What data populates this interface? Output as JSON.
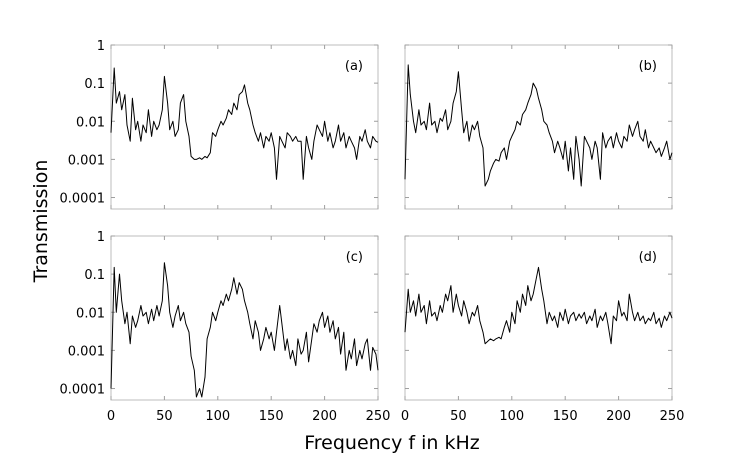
{
  "figure": {
    "ylabel": "Transmission",
    "xlabel": "Frequency f in kHz"
  },
  "chart_data": [
    {
      "type": "line",
      "panel": "(a)",
      "xlim": [
        0,
        250
      ],
      "ylim": [
        5e-05,
        1
      ],
      "yscale": "log",
      "xticks": [
        0,
        50,
        100,
        150,
        200,
        250
      ],
      "yticks": [
        0.0001,
        0.001,
        0.01,
        0.1,
        1
      ],
      "ytick_labels": [
        "0.0001",
        "0.001",
        "0.01",
        "0.1",
        "1"
      ],
      "show_xtick_labels": false,
      "show_ytick_labels": true,
      "grid": false,
      "series": [
        {
          "x": [
            0,
            3,
            5,
            8,
            10,
            13,
            15,
            18,
            20,
            23,
            25,
            28,
            30,
            33,
            35,
            38,
            40,
            43,
            45,
            48,
            50,
            53,
            55,
            58,
            60,
            63,
            65,
            68,
            70,
            73,
            75,
            78,
            80,
            83,
            85,
            88,
            90,
            93,
            95,
            98,
            100,
            103,
            105,
            108,
            110,
            113,
            115,
            118,
            120,
            123,
            125,
            128,
            130,
            133,
            135,
            138,
            140,
            143,
            145,
            148,
            150,
            153,
            155,
            158,
            160,
            163,
            165,
            168,
            170,
            173,
            175,
            178,
            180,
            183,
            185,
            188,
            190,
            193,
            195,
            198,
            200,
            203,
            205,
            208,
            210,
            213,
            215,
            218,
            220,
            223,
            225,
            228,
            230,
            233,
            235,
            238,
            240,
            243,
            245,
            248,
            250
          ],
          "y": [
            0.005,
            0.25,
            0.03,
            0.06,
            0.02,
            0.05,
            0.008,
            0.003,
            0.04,
            0.006,
            0.01,
            0.003,
            0.008,
            0.005,
            0.02,
            0.004,
            0.01,
            0.006,
            0.008,
            0.02,
            0.15,
            0.03,
            0.006,
            0.01,
            0.004,
            0.006,
            0.03,
            0.05,
            0.01,
            0.004,
            0.0012,
            0.001,
            0.001,
            0.0011,
            0.001,
            0.0012,
            0.0011,
            0.0015,
            0.005,
            0.004,
            0.006,
            0.01,
            0.008,
            0.012,
            0.02,
            0.015,
            0.03,
            0.02,
            0.05,
            0.06,
            0.09,
            0.03,
            0.02,
            0.008,
            0.005,
            0.003,
            0.005,
            0.002,
            0.004,
            0.003,
            0.005,
            0.002,
            0.0003,
            0.004,
            0.003,
            0.002,
            0.005,
            0.004,
            0.003,
            0.004,
            0.003,
            0.003,
            0.0003,
            0.004,
            0.002,
            0.001,
            0.003,
            0.008,
            0.006,
            0.004,
            0.01,
            0.003,
            0.005,
            0.002,
            0.003,
            0.008,
            0.003,
            0.005,
            0.002,
            0.004,
            0.003,
            0.002,
            0.001,
            0.004,
            0.003,
            0.006,
            0.003,
            0.002,
            0.004,
            0.003,
            0.0028
          ]
        }
      ]
    },
    {
      "type": "line",
      "panel": "(b)",
      "xlim": [
        0,
        250
      ],
      "ylim": [
        5e-05,
        1
      ],
      "yscale": "log",
      "xticks": [
        0,
        50,
        100,
        150,
        200,
        250
      ],
      "yticks": [
        0.0001,
        0.001,
        0.01,
        0.1,
        1
      ],
      "show_xtick_labels": false,
      "show_ytick_labels": false,
      "grid": false,
      "series": [
        {
          "x": [
            0,
            3,
            5,
            8,
            10,
            13,
            15,
            18,
            20,
            23,
            25,
            28,
            30,
            33,
            35,
            38,
            40,
            43,
            45,
            48,
            50,
            53,
            55,
            58,
            60,
            63,
            65,
            68,
            70,
            73,
            75,
            78,
            80,
            83,
            85,
            88,
            90,
            93,
            95,
            98,
            100,
            103,
            105,
            108,
            110,
            113,
            115,
            118,
            120,
            123,
            125,
            128,
            130,
            133,
            135,
            138,
            140,
            143,
            145,
            148,
            150,
            153,
            155,
            158,
            160,
            163,
            165,
            168,
            170,
            173,
            175,
            178,
            180,
            183,
            185,
            188,
            190,
            193,
            195,
            198,
            200,
            203,
            205,
            208,
            210,
            213,
            215,
            218,
            220,
            223,
            225,
            228,
            230,
            233,
            235,
            238,
            240,
            243,
            245,
            248,
            250
          ],
          "y": [
            0.0003,
            0.3,
            0.05,
            0.01,
            0.005,
            0.02,
            0.008,
            0.01,
            0.006,
            0.03,
            0.008,
            0.01,
            0.005,
            0.012,
            0.01,
            0.02,
            0.006,
            0.01,
            0.03,
            0.06,
            0.2,
            0.02,
            0.005,
            0.01,
            0.003,
            0.008,
            0.006,
            0.01,
            0.004,
            0.002,
            0.0002,
            0.0003,
            0.0005,
            0.0008,
            0.001,
            0.0009,
            0.0015,
            0.002,
            0.001,
            0.003,
            0.004,
            0.006,
            0.01,
            0.008,
            0.015,
            0.02,
            0.03,
            0.05,
            0.1,
            0.07,
            0.04,
            0.02,
            0.01,
            0.008,
            0.005,
            0.003,
            0.0015,
            0.003,
            0.002,
            0.001,
            0.003,
            0.0005,
            0.002,
            0.0003,
            0.004,
            0.001,
            0.0002,
            0.004,
            0.003,
            0.002,
            0.001,
            0.003,
            0.002,
            0.0003,
            0.005,
            0.002,
            0.003,
            0.004,
            0.002,
            0.005,
            0.003,
            0.002,
            0.004,
            0.003,
            0.008,
            0.004,
            0.006,
            0.01,
            0.004,
            0.003,
            0.006,
            0.002,
            0.003,
            0.002,
            0.0015,
            0.002,
            0.0012,
            0.002,
            0.003,
            0.001,
            0.0015
          ]
        }
      ]
    },
    {
      "type": "line",
      "panel": "(c)",
      "xlim": [
        0,
        250
      ],
      "ylim": [
        5e-05,
        1
      ],
      "yscale": "log",
      "xticks": [
        0,
        50,
        100,
        150,
        200,
        250
      ],
      "xtick_labels": [
        "0",
        "50",
        "100",
        "150",
        "200",
        "250"
      ],
      "yticks": [
        0.0001,
        0.001,
        0.01,
        0.1,
        1
      ],
      "ytick_labels": [
        "0.0001",
        "0.001",
        "0.01",
        "0.1",
        "1"
      ],
      "show_xtick_labels": true,
      "show_ytick_labels": true,
      "grid": false,
      "series": [
        {
          "x": [
            0,
            3,
            5,
            8,
            10,
            13,
            15,
            18,
            20,
            23,
            25,
            28,
            30,
            33,
            35,
            38,
            40,
            43,
            45,
            48,
            50,
            53,
            55,
            58,
            60,
            63,
            65,
            68,
            70,
            73,
            75,
            78,
            80,
            83,
            85,
            88,
            90,
            93,
            95,
            98,
            100,
            103,
            105,
            108,
            110,
            113,
            115,
            118,
            120,
            123,
            125,
            128,
            130,
            133,
            135,
            138,
            140,
            143,
            145,
            148,
            150,
            153,
            155,
            158,
            160,
            163,
            165,
            168,
            170,
            173,
            175,
            178,
            180,
            183,
            185,
            188,
            190,
            193,
            195,
            198,
            200,
            203,
            205,
            208,
            210,
            213,
            215,
            218,
            220,
            223,
            225,
            228,
            230,
            233,
            235,
            238,
            240,
            243,
            245,
            248,
            250
          ],
          "y": [
            0.0001,
            0.15,
            0.01,
            0.1,
            0.02,
            0.005,
            0.01,
            0.0015,
            0.008,
            0.004,
            0.006,
            0.015,
            0.008,
            0.01,
            0.005,
            0.012,
            0.006,
            0.015,
            0.008,
            0.02,
            0.2,
            0.05,
            0.01,
            0.004,
            0.008,
            0.015,
            0.006,
            0.01,
            0.005,
            0.003,
            0.0007,
            0.0003,
            6e-05,
            0.0001,
            6e-05,
            0.0002,
            0.002,
            0.004,
            0.01,
            0.006,
            0.01,
            0.02,
            0.015,
            0.03,
            0.02,
            0.04,
            0.08,
            0.03,
            0.06,
            0.04,
            0.02,
            0.01,
            0.005,
            0.002,
            0.006,
            0.003,
            0.001,
            0.002,
            0.004,
            0.002,
            0.003,
            0.001,
            0.003,
            0.015,
            0.005,
            0.001,
            0.002,
            0.0006,
            0.001,
            0.0004,
            0.002,
            0.0008,
            0.001,
            0.003,
            0.0005,
            0.002,
            0.005,
            0.003,
            0.006,
            0.01,
            0.004,
            0.008,
            0.003,
            0.006,
            0.002,
            0.004,
            0.0008,
            0.003,
            0.0003,
            0.001,
            0.0006,
            0.002,
            0.0004,
            0.001,
            0.0006,
            0.0015,
            0.002,
            0.0003,
            0.0012,
            0.0008,
            0.0003
          ]
        }
      ]
    },
    {
      "type": "line",
      "panel": "(d)",
      "xlim": [
        0,
        250
      ],
      "ylim": [
        5e-05,
        1
      ],
      "yscale": "log",
      "xticks": [
        0,
        50,
        100,
        150,
        200,
        250
      ],
      "xtick_labels": [
        "0",
        "50",
        "100",
        "150",
        "200",
        "250"
      ],
      "yticks": [
        0.0001,
        0.001,
        0.01,
        0.1,
        1
      ],
      "show_xtick_labels": true,
      "show_ytick_labels": false,
      "grid": false,
      "series": [
        {
          "x": [
            0,
            3,
            5,
            8,
            10,
            13,
            15,
            18,
            20,
            23,
            25,
            28,
            30,
            33,
            35,
            38,
            40,
            43,
            45,
            48,
            50,
            53,
            55,
            58,
            60,
            63,
            65,
            68,
            70,
            73,
            75,
            78,
            80,
            83,
            85,
            88,
            90,
            93,
            95,
            98,
            100,
            103,
            105,
            108,
            110,
            113,
            115,
            118,
            120,
            123,
            125,
            128,
            130,
            133,
            135,
            138,
            140,
            143,
            145,
            148,
            150,
            153,
            155,
            158,
            160,
            163,
            165,
            168,
            170,
            173,
            175,
            178,
            180,
            183,
            185,
            188,
            190,
            193,
            195,
            198,
            200,
            203,
            205,
            208,
            210,
            213,
            215,
            218,
            220,
            223,
            225,
            228,
            230,
            233,
            235,
            238,
            240,
            243,
            245,
            248,
            250
          ],
          "y": [
            0.003,
            0.04,
            0.01,
            0.02,
            0.008,
            0.03,
            0.01,
            0.015,
            0.005,
            0.02,
            0.008,
            0.01,
            0.006,
            0.015,
            0.01,
            0.03,
            0.02,
            0.05,
            0.01,
            0.03,
            0.015,
            0.008,
            0.02,
            0.01,
            0.005,
            0.01,
            0.008,
            0.015,
            0.006,
            0.003,
            0.0015,
            0.0018,
            0.002,
            0.0018,
            0.002,
            0.0022,
            0.002,
            0.004,
            0.006,
            0.003,
            0.01,
            0.005,
            0.02,
            0.01,
            0.03,
            0.015,
            0.05,
            0.02,
            0.03,
            0.08,
            0.15,
            0.04,
            0.02,
            0.005,
            0.01,
            0.006,
            0.008,
            0.004,
            0.01,
            0.006,
            0.012,
            0.005,
            0.008,
            0.01,
            0.006,
            0.009,
            0.007,
            0.01,
            0.005,
            0.008,
            0.006,
            0.012,
            0.004,
            0.008,
            0.006,
            0.01,
            0.005,
            0.0015,
            0.008,
            0.006,
            0.02,
            0.008,
            0.01,
            0.006,
            0.03,
            0.01,
            0.006,
            0.01,
            0.006,
            0.008,
            0.005,
            0.007,
            0.006,
            0.01,
            0.005,
            0.007,
            0.004,
            0.008,
            0.006,
            0.01,
            0.007
          ]
        }
      ]
    }
  ]
}
